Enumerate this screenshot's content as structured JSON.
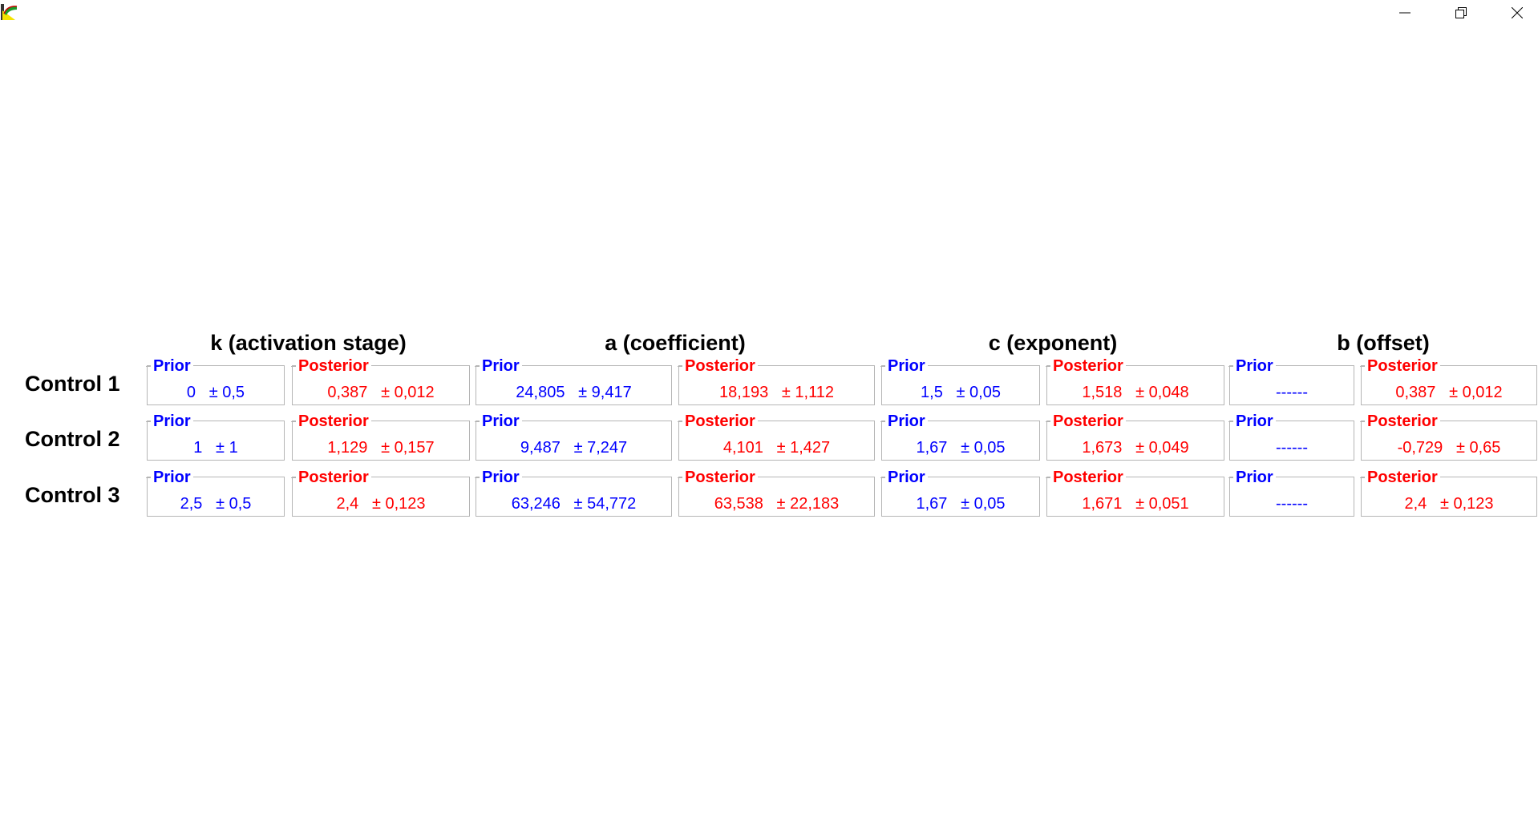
{
  "colors": {
    "prior": "#0000ff",
    "posterior": "#ff0000",
    "border": "#b5b5b5"
  },
  "icons": {
    "app": "app-icon",
    "minimize": "minimize-icon",
    "restore": "restore-icon",
    "close": "close-icon"
  },
  "legend": {
    "prior": "Prior",
    "posterior": "Posterior"
  },
  "columns": [
    "k (activation stage)",
    "a (coefficient)",
    "c (exponent)",
    "b (offset)"
  ],
  "rows": [
    {
      "label": "Control 1",
      "cells": [
        {
          "prior": "0   ± 0,5",
          "posterior": "0,387   ± 0,012"
        },
        {
          "prior": "24,805   ± 9,417",
          "posterior": "18,193   ± 1,112"
        },
        {
          "prior": "1,5   ± 0,05",
          "posterior": "1,518   ± 0,048"
        },
        {
          "prior": "------",
          "posterior": "0,387   ± 0,012"
        }
      ]
    },
    {
      "label": "Control 2",
      "cells": [
        {
          "prior": "1   ± 1",
          "posterior": "1,129   ± 0,157"
        },
        {
          "prior": "9,487   ± 7,247",
          "posterior": "4,101   ± 1,427"
        },
        {
          "prior": "1,67   ± 0,05",
          "posterior": "1,673   ± 0,049"
        },
        {
          "prior": "------",
          "posterior": "-0,729   ± 0,65"
        }
      ]
    },
    {
      "label": "Control 3",
      "cells": [
        {
          "prior": "2,5   ± 0,5",
          "posterior": "2,4   ± 0,123"
        },
        {
          "prior": "63,246   ± 54,772",
          "posterior": "63,538   ± 22,183"
        },
        {
          "prior": "1,67   ± 0,05",
          "posterior": "1,671   ± 0,051"
        },
        {
          "prior": "------",
          "posterior": "2,4   ± 0,123"
        }
      ]
    }
  ]
}
